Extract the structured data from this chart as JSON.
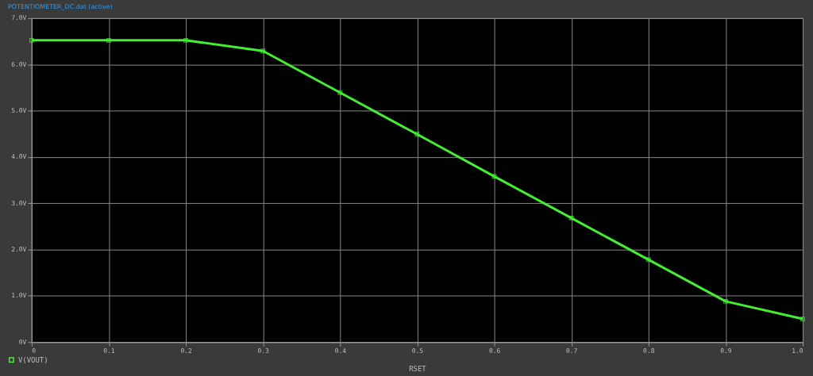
{
  "chart_data": {
    "type": "line",
    "title": "POTENTIOMETER_DC.dat (active)",
    "xlabel": "RSET",
    "x": [
      0,
      0.1,
      0.2,
      0.3,
      0.4,
      0.5,
      0.6,
      0.7,
      0.8,
      0.9,
      1.0
    ],
    "series": [
      {
        "name": "V(VOUT)",
        "color": "#44ee33",
        "values": [
          6.52,
          6.52,
          6.52,
          6.29,
          5.39,
          4.49,
          3.58,
          2.68,
          1.78,
          0.88,
          0.5
        ]
      }
    ],
    "xlim": [
      0,
      1.0
    ],
    "xticks": [
      0,
      0.1,
      0.2,
      0.3,
      0.4,
      0.5,
      0.6,
      0.7,
      0.8,
      0.9,
      {
        "value": 1.0,
        "label": "1.0"
      }
    ],
    "ylim": [
      0,
      7
    ],
    "yticks": [
      {
        "value": 0,
        "label": "0V"
      },
      {
        "value": 1,
        "label": "1.0V"
      },
      {
        "value": 2,
        "label": "2.0V"
      },
      {
        "value": 3,
        "label": "3.0V"
      },
      {
        "value": 4,
        "label": "4.0V"
      },
      {
        "value": 5,
        "label": "5.0V"
      },
      {
        "value": 6,
        "label": "6.0V"
      },
      {
        "value": 7,
        "label": "7.0V"
      }
    ],
    "grid": true,
    "legend": "bottom left",
    "marker": "square",
    "line_style": "solid"
  }
}
